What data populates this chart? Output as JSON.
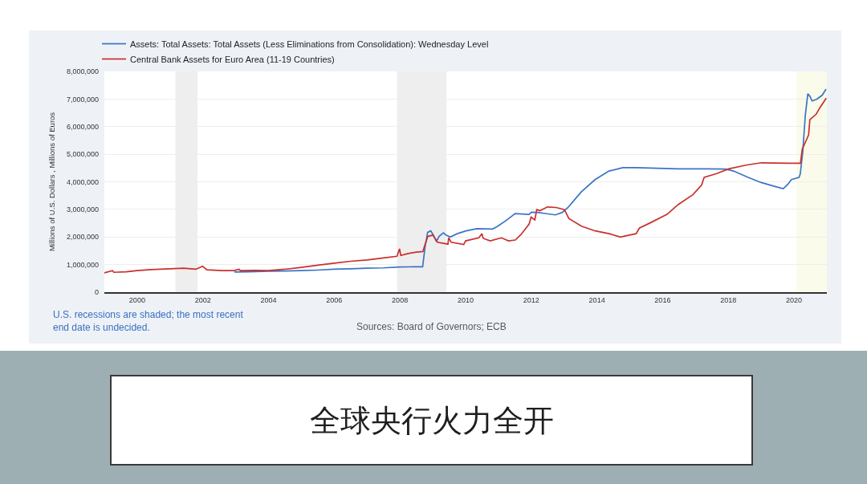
{
  "chart_data": {
    "type": "line",
    "title": "全球央行火力全开",
    "ylabel": "Millions of U.S. Dollars , Millions of Euros",
    "annotations": [
      "U.S. recessions are shaded; the most recent end date is undecided.",
      "Sources: Board of Governors; ECB"
    ],
    "xlim": [
      "1999-01-01",
      "2021-01-01"
    ],
    "xticks": [
      "2000",
      "2002",
      "2004",
      "2006",
      "2008",
      "2010",
      "2012",
      "2014",
      "2016",
      "2018",
      "2020"
    ],
    "ylim": [
      0,
      8000000
    ],
    "yticks": [
      0,
      {
        "value": 1000000,
        "label": "1,000,000"
      },
      {
        "value": 2000000,
        "label": "2,000,000"
      },
      {
        "value": 3000000,
        "label": "3,000,000"
      },
      {
        "value": 4000000,
        "label": "4,000,000"
      },
      {
        "value": 5000000,
        "label": "5,000,000"
      },
      {
        "value": 6000000,
        "label": "6,000,000"
      },
      {
        "value": 7000000,
        "label": "7,000,000"
      },
      {
        "value": 8000000,
        "label": "8,000,000"
      }
    ],
    "grid": "y",
    "legend": "top left",
    "bands": [
      {
        "axis": "x",
        "from": "2001-03-01",
        "to": "2001-11-01",
        "color": "#eeeeee"
      },
      {
        "axis": "x",
        "from": "2007-12-01",
        "to": "2009-06-01",
        "color": "#eeeeee"
      },
      {
        "axis": "x",
        "from": "2020-02-01",
        "to": "2021-01-01",
        "color": "#fafbea"
      }
    ],
    "series": [
      {
        "name": "Assets: Total Assets: Total Assets (Less Eliminations from Consolidation): Wednesday Level",
        "color": "#3a74c6",
        "x": [
          "2002-12-18",
          "2003-06-01",
          "2004-01-01",
          "2004-07-01",
          "2005-01-01",
          "2005-07-01",
          "2006-01-01",
          "2006-07-01",
          "2007-01-01",
          "2007-07-01",
          "2008-01-01",
          "2008-06-01",
          "2008-09-10",
          "2008-10-08",
          "2008-11-05",
          "2008-12-10",
          "2009-01-07",
          "2009-02-11",
          "2009-03-11",
          "2009-04-29",
          "2009-05-27",
          "2009-07-15",
          "2009-09-30",
          "2010-01-06",
          "2010-05-05",
          "2010-10-27",
          "2010-12-15",
          "2011-03-16",
          "2011-07-06",
          "2011-12-07",
          "2012-01-04",
          "2012-03-07",
          "2012-06-06",
          "2012-09-26",
          "2012-12-12",
          "2013-02-13",
          "2013-07-10",
          "2013-12-11",
          "2014-05-14",
          "2014-10-15",
          "2015-03-18",
          "2016-06-22",
          "2017-04-26",
          "2017-11-29",
          "2018-02-28",
          "2018-07-25",
          "2018-12-26",
          "2019-06-05",
          "2019-09-04",
          "2019-10-23",
          "2019-12-04",
          "2020-02-26",
          "2020-03-11",
          "2020-04-08",
          "2020-05-06",
          "2020-06-03",
          "2020-06-24",
          "2020-07-22",
          "2020-09-09",
          "2020-11-11",
          "2020-12-23"
        ],
        "values": [
          730000,
          740000,
          760000,
          770000,
          780000,
          800000,
          830000,
          850000,
          870000,
          880000,
          910000,
          920000,
          920000,
          1660000,
          2170000,
          2220000,
          2070000,
          1840000,
          2020000,
          2150000,
          2070000,
          2000000,
          2120000,
          2220000,
          2300000,
          2290000,
          2370000,
          2570000,
          2850000,
          2820000,
          2900000,
          2890000,
          2850000,
          2800000,
          2890000,
          3070000,
          3630000,
          4080000,
          4390000,
          4510000,
          4510000,
          4470000,
          4470000,
          4460000,
          4390000,
          4180000,
          3980000,
          3830000,
          3750000,
          3900000,
          4080000,
          4160000,
          4280000,
          5090000,
          6400000,
          7190000,
          7110000,
          6930000,
          6990000,
          7140000,
          7360000
        ]
      },
      {
        "name": "Central Bank Assets for Euro Area (11-19 Countries)",
        "color": "#c9302c",
        "x": [
          "1999-01-01",
          "1999-04-02",
          "1999-04-16",
          "1999-09-01",
          "2000-01-01",
          "2000-06-01",
          "2001-01-01",
          "2001-06-01",
          "2001-10-15",
          "2001-12-28",
          "2002-02-15",
          "2002-08-01",
          "2002-12-15",
          "2003-02-07",
          "2003-02-21",
          "2003-08-01",
          "2004-01-01",
          "2004-07-01",
          "2005-01-01",
          "2005-07-01",
          "2006-01-01",
          "2006-07-01",
          "2007-01-01",
          "2007-07-01",
          "2007-11-30",
          "2007-12-28",
          "2008-01-11",
          "2008-04-01",
          "2008-07-01",
          "2008-09-12",
          "2008-10-10",
          "2008-11-07",
          "2009-01-02",
          "2009-02-20",
          "2009-06-19",
          "2009-06-26",
          "2009-07-24",
          "2009-12-11",
          "2010-01-01",
          "2010-05-28",
          "2010-07-02",
          "2010-07-16",
          "2010-10-01",
          "2011-02-04",
          "2011-04-22",
          "2011-07-08",
          "2011-09-09",
          "2011-12-09",
          "2011-12-30",
          "2012-02-10",
          "2012-03-02",
          "2012-04-06",
          "2012-06-29",
          "2012-10-05",
          "2013-01-04",
          "2013-02-22",
          "2013-07-12",
          "2013-12-13",
          "2014-05-16",
          "2014-09-19",
          "2014-12-26",
          "2015-03-13",
          "2015-04-17",
          "2015-08-21",
          "2016-02-19",
          "2016-06-24",
          "2016-12-02",
          "2017-03-10",
          "2017-04-07",
          "2017-08-25",
          "2018-01-05",
          "2018-07-27",
          "2019-01-04",
          "2019-11-01",
          "2020-03-13",
          "2020-04-03",
          "2020-05-08",
          "2020-06-12",
          "2020-06-26",
          "2020-09-04",
          "2020-10-09",
          "2020-12-25"
        ],
        "values": [
          700000,
          780000,
          720000,
          740000,
          780000,
          820000,
          850000,
          870000,
          830000,
          940000,
          810000,
          780000,
          780000,
          830000,
          780000,
          790000,
          780000,
          830000,
          900000,
          980000,
          1050000,
          1120000,
          1170000,
          1240000,
          1300000,
          1570000,
          1330000,
          1400000,
          1450000,
          1470000,
          1760000,
          2020000,
          2070000,
          1810000,
          1740000,
          1970000,
          1810000,
          1730000,
          1860000,
          1970000,
          2120000,
          1950000,
          1860000,
          1970000,
          1860000,
          1890000,
          2090000,
          2470000,
          2720000,
          2620000,
          2990000,
          2950000,
          3090000,
          3070000,
          2990000,
          2670000,
          2390000,
          2220000,
          2120000,
          2000000,
          2070000,
          2120000,
          2320000,
          2520000,
          2820000,
          3180000,
          3530000,
          3880000,
          4160000,
          4300000,
          4470000,
          4610000,
          4690000,
          4670000,
          4670000,
          5190000,
          5440000,
          5700000,
          6250000,
          6450000,
          6650000,
          7030000
        ]
      }
    ]
  }
}
